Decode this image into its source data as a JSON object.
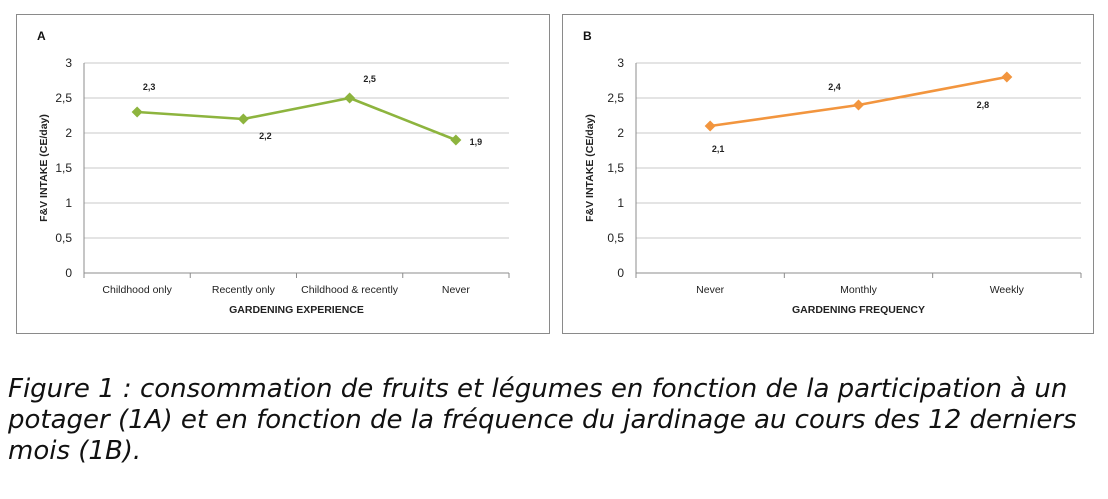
{
  "chart_data": [
    {
      "type": "line",
      "panel_label": "A",
      "categories": [
        "Childhood only",
        "Recently only",
        "Childhood & recently",
        "Never"
      ],
      "values": [
        2.3,
        2.2,
        2.5,
        1.9
      ],
      "data_labels": [
        "2,3",
        "2,2",
        "2,5",
        "1,9"
      ],
      "xlabel": "GARDENING EXPERIENCE",
      "ylabel": "F&V INTAKE (CE/day)",
      "ylim": [
        0,
        3
      ],
      "y_ticks": [
        "0",
        "0,5",
        "1",
        "1,5",
        "2",
        "2,5",
        "3"
      ],
      "grid": true,
      "color": "#8db43e"
    },
    {
      "type": "line",
      "panel_label": "B",
      "categories": [
        "Never",
        "Monthly",
        "Weekly"
      ],
      "values": [
        2.1,
        2.4,
        2.8
      ],
      "data_labels": [
        "2,1",
        "2,4",
        "2,8"
      ],
      "xlabel": "GARDENING FREQUENCY",
      "ylabel": "F&V INTAKE (CE/day)",
      "ylim": [
        0,
        3
      ],
      "y_ticks": [
        "0",
        "0,5",
        "1",
        "1,5",
        "2",
        "2,5",
        "3"
      ],
      "grid": true,
      "color": "#f2953e"
    }
  ],
  "caption": "Figure 1 : consommation de fruits et légumes en fonction de la participation à un potager (1A) et en fonction de la fréquence du jardinage au cours des 12 derniers mois (1B)."
}
